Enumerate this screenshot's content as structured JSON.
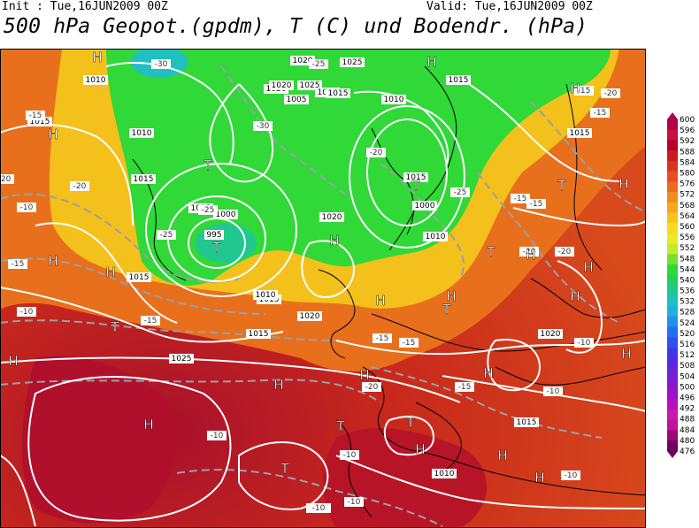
{
  "header": {
    "init_label": "Init : Tue,16JUN2009 00Z",
    "valid_label": "Valid: Tue,16JUN2009 00Z",
    "title": "500 hPa Geopot.(gpdm), T (C) und Bodendr. (hPa)"
  },
  "map": {
    "pressure_labels": [
      "1010",
      "1015",
      "1020",
      "1025",
      "1005",
      "1000",
      "995",
      "1010",
      "1015",
      "1020",
      "1025",
      "1015",
      "1020",
      "1005",
      "1000",
      "1010",
      "1015",
      "1020",
      "1015",
      "1010",
      "1015",
      "1020",
      "1025",
      "1015",
      "1015",
      "1010",
      "1015",
      "1020",
      "1020",
      "1015",
      "1010",
      "1015"
    ],
    "temp_labels": [
      "-30",
      "-25",
      "-20",
      "-15",
      "-10",
      "-15",
      "-20",
      "-25",
      "-30",
      "-20",
      "-25",
      "-15",
      "-10",
      "-15",
      "-20",
      "-20",
      "-15",
      "-10",
      "-15",
      "-20",
      "-25",
      "-15",
      "-20",
      "-15",
      "-10",
      "-10",
      "-10",
      "-15",
      "-10",
      "-10",
      "-10",
      "-15"
    ],
    "pressure_centers": [
      "H",
      "H",
      "H",
      "T",
      "T",
      "T",
      "H",
      "H",
      "T",
      "H",
      "H",
      "T",
      "H",
      "H",
      "H",
      "H",
      "T",
      "H",
      "T",
      "H",
      "H",
      "T",
      "H",
      "H",
      "H",
      "T",
      "H",
      "H",
      "T",
      "H",
      "H",
      "H"
    ],
    "colors": {
      "land_border": "#000000",
      "isobar": "#ffffff",
      "isotherm": "#9aa0a8"
    }
  },
  "colorbar": {
    "ticks": [
      "600",
      "596",
      "592",
      "588",
      "584",
      "580",
      "576",
      "572",
      "568",
      "564",
      "560",
      "556",
      "552",
      "548",
      "544",
      "540",
      "536",
      "532",
      "528",
      "524",
      "520",
      "516",
      "512",
      "508",
      "504",
      "500",
      "496",
      "492",
      "488",
      "484",
      "480",
      "476"
    ],
    "colors": [
      "#b3004c",
      "#c8103a",
      "#b8002e",
      "#cc1a1a",
      "#d8341c",
      "#e54e20",
      "#ec6a1c",
      "#f08c1c",
      "#f4a81c",
      "#f8c41c",
      "#f8dc20",
      "#e8ec20",
      "#c0ec28",
      "#78e030",
      "#30d838",
      "#20d060",
      "#20c890",
      "#20c0c0",
      "#20b0e0",
      "#2090f0",
      "#2070f0",
      "#3050f0",
      "#4038e8",
      "#5828e0",
      "#7020d8",
      "#8818d0",
      "#a010c8",
      "#b810c0",
      "#c818b0",
      "#c0109c",
      "#9c0878",
      "#700060"
    ]
  }
}
